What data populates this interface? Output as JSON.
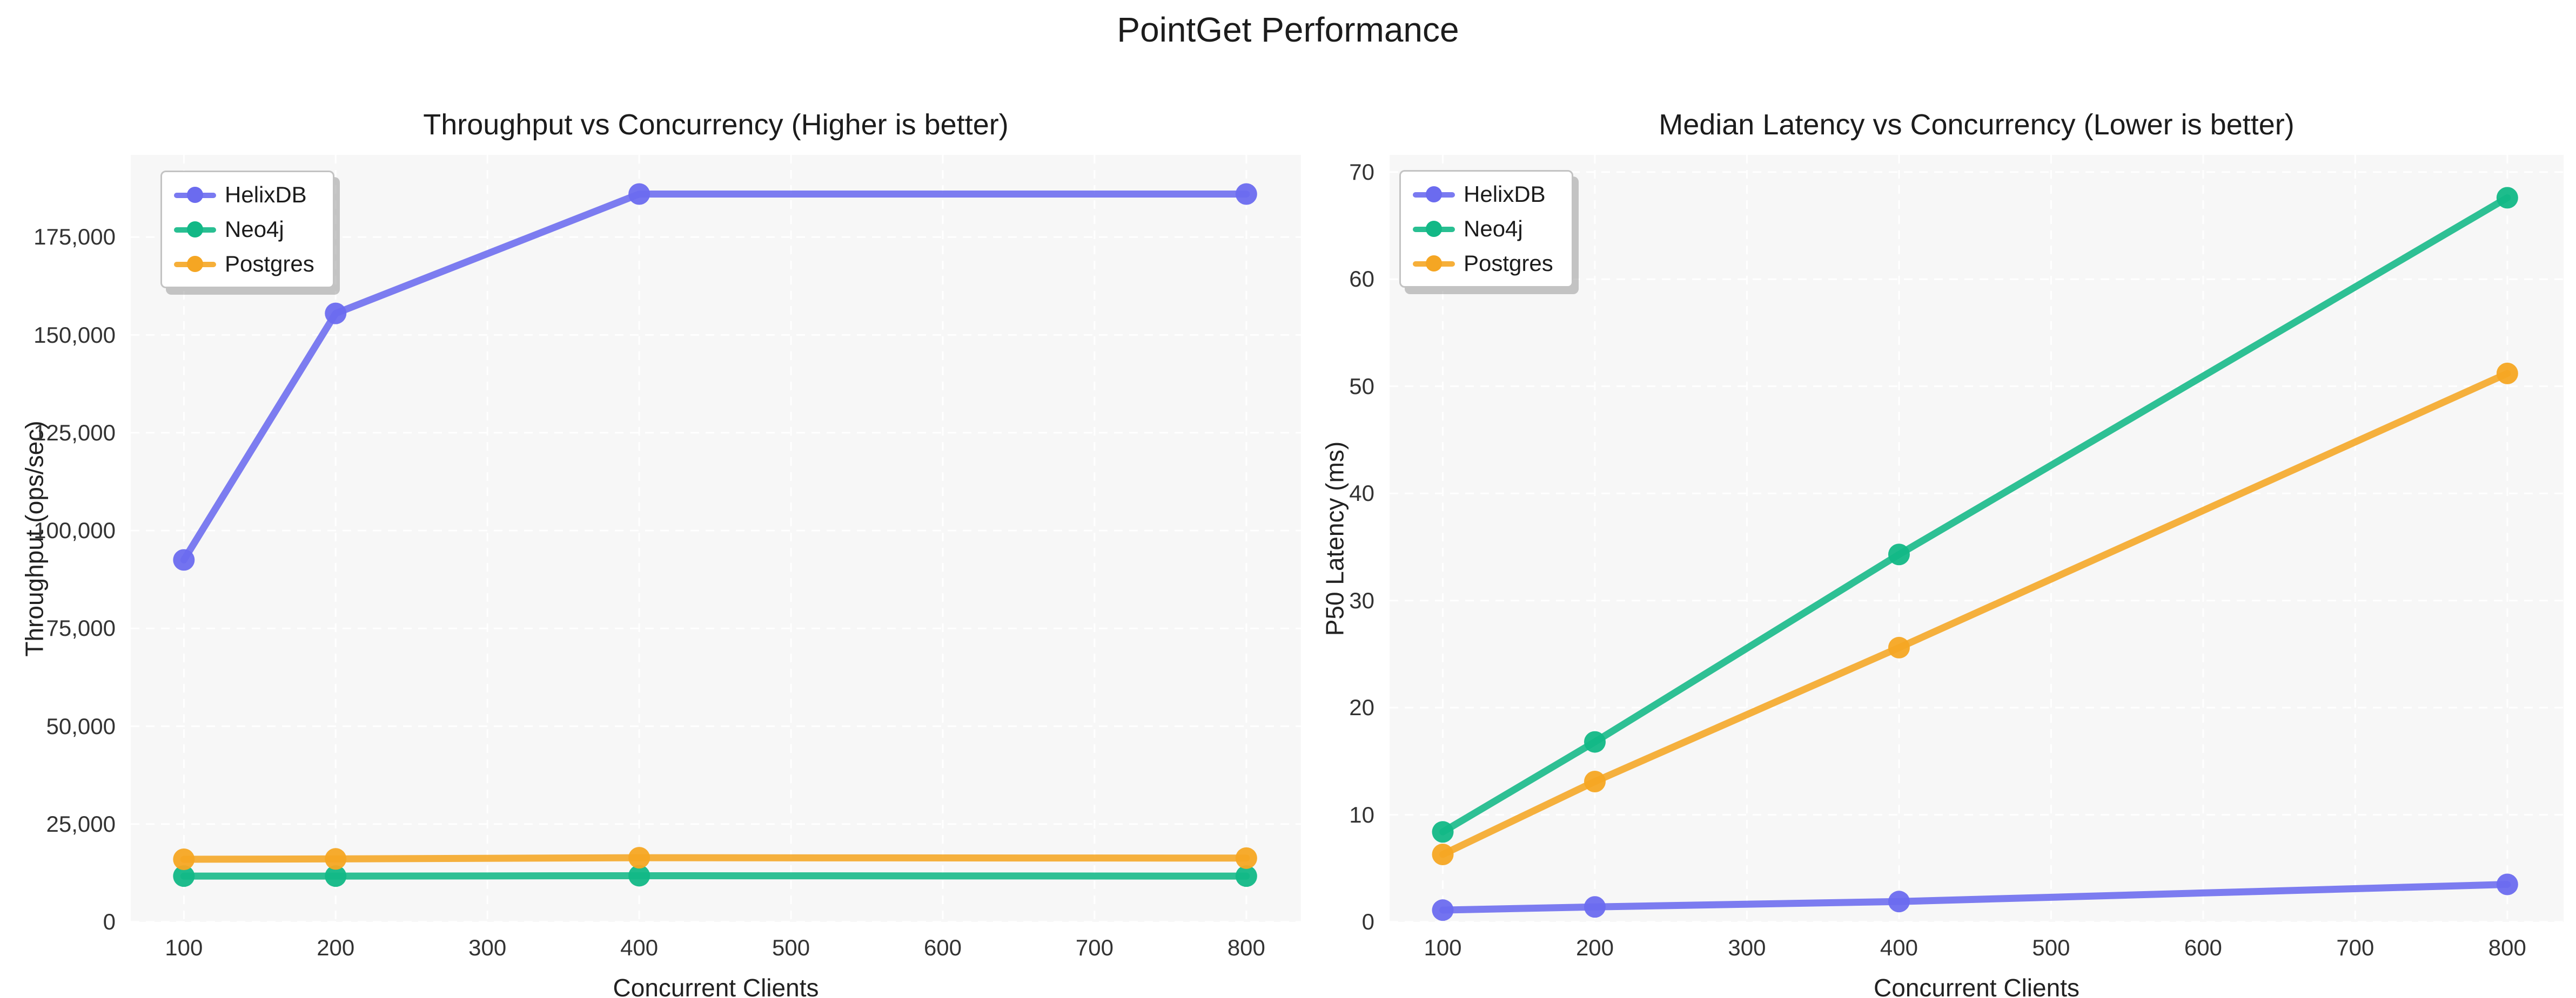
{
  "page_title": "PointGet Performance",
  "colors": {
    "helixdb": "#6b6bef",
    "neo4j": "#12b886",
    "postgres": "#f5a623",
    "plot_background": "#f7f7f7",
    "gridline": "#ffffff",
    "title_text": "#1c1c1c",
    "tick_text": "#333333"
  },
  "chart_data": [
    {
      "type": "line",
      "title": "Throughput vs Concurrency (Higher is better)",
      "xlabel": "Concurrent Clients",
      "ylabel": "Throughput (ops/sec)",
      "x": [
        100,
        200,
        400,
        800
      ],
      "xlim": [
        65,
        836
      ],
      "ylim": [
        0,
        196000
      ],
      "grid": true,
      "legend_position": "upper-left",
      "x_ticks": [
        {
          "v": 100,
          "label": "100"
        },
        {
          "v": 200,
          "label": "200"
        },
        {
          "v": 300,
          "label": "300"
        },
        {
          "v": 400,
          "label": "400"
        },
        {
          "v": 500,
          "label": "500"
        },
        {
          "v": 600,
          "label": "600"
        },
        {
          "v": 700,
          "label": "700"
        },
        {
          "v": 800,
          "label": "800"
        }
      ],
      "y_ticks": [
        {
          "v": 0,
          "label": "0"
        },
        {
          "v": 25000,
          "label": "25,000"
        },
        {
          "v": 50000,
          "label": "50,000"
        },
        {
          "v": 75000,
          "label": "75,000"
        },
        {
          "v": 100000,
          "label": "100,000"
        },
        {
          "v": 125000,
          "label": "125,000"
        },
        {
          "v": 150000,
          "label": "150,000"
        },
        {
          "v": 175000,
          "label": "175,000"
        }
      ],
      "series": [
        {
          "name": "HelixDB",
          "color_key": "helixdb",
          "values": [
            92500,
            155500,
            186000,
            186000
          ]
        },
        {
          "name": "Neo4j",
          "color_key": "neo4j",
          "values": [
            11700,
            11700,
            11800,
            11700
          ]
        },
        {
          "name": "Postgres",
          "color_key": "postgres",
          "values": [
            16000,
            16100,
            16400,
            16300
          ]
        }
      ]
    },
    {
      "type": "line",
      "title": "Median Latency vs Concurrency (Lower is better)",
      "xlabel": "Concurrent Clients",
      "ylabel": "P50 Latency (ms)",
      "x": [
        100,
        200,
        400,
        800
      ],
      "xlim": [
        65,
        837
      ],
      "ylim": [
        0,
        71.6
      ],
      "grid": true,
      "legend_position": "upper-left",
      "x_ticks": [
        {
          "v": 100,
          "label": "100"
        },
        {
          "v": 200,
          "label": "200"
        },
        {
          "v": 300,
          "label": "300"
        },
        {
          "v": 400,
          "label": "400"
        },
        {
          "v": 500,
          "label": "500"
        },
        {
          "v": 600,
          "label": "600"
        },
        {
          "v": 700,
          "label": "700"
        },
        {
          "v": 800,
          "label": "800"
        }
      ],
      "y_ticks": [
        {
          "v": 0,
          "label": "0"
        },
        {
          "v": 10,
          "label": "10"
        },
        {
          "v": 20,
          "label": "20"
        },
        {
          "v": 30,
          "label": "30"
        },
        {
          "v": 40,
          "label": "40"
        },
        {
          "v": 50,
          "label": "50"
        },
        {
          "v": 60,
          "label": "60"
        },
        {
          "v": 70,
          "label": "70"
        }
      ],
      "series": [
        {
          "name": "HelixDB",
          "color_key": "helixdb",
          "values": [
            1.1,
            1.4,
            1.9,
            3.5
          ]
        },
        {
          "name": "Neo4j",
          "color_key": "neo4j",
          "values": [
            8.4,
            16.8,
            34.3,
            67.6
          ]
        },
        {
          "name": "Postgres",
          "color_key": "postgres",
          "values": [
            6.3,
            13.1,
            25.6,
            51.2
          ]
        }
      ]
    }
  ]
}
